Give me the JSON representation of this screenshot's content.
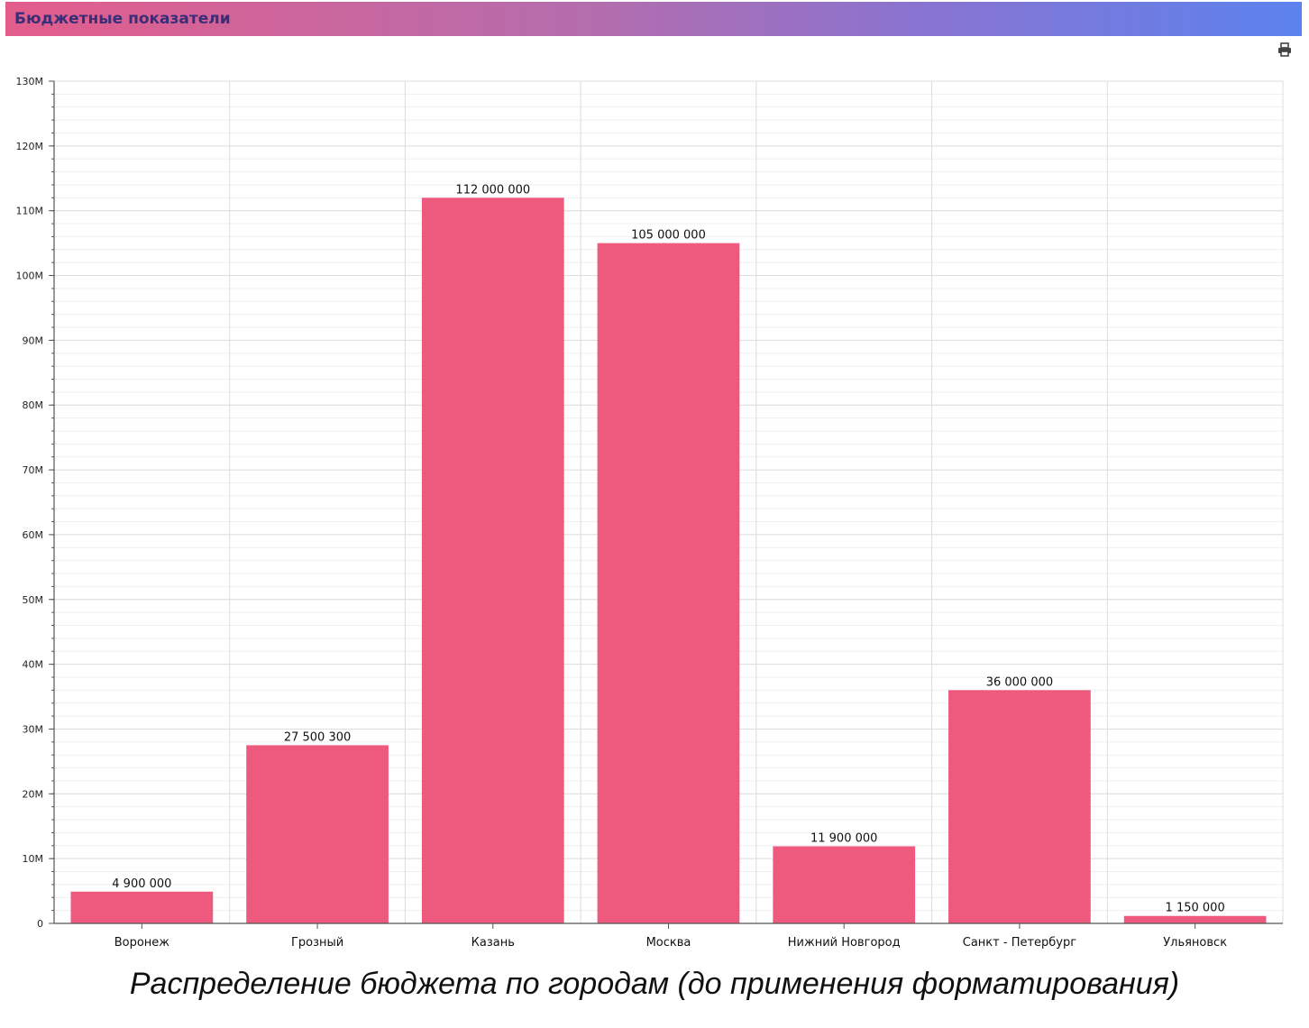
{
  "header": {
    "title": "Бюджетные показатели",
    "accent_start": "#e35d8b",
    "accent_end": "#5c82ee"
  },
  "toolbar": {
    "print_icon": "printer-icon"
  },
  "caption": "Распределение бюджета по городам (до применения форматирования)",
  "chart_data": {
    "type": "bar",
    "categories": [
      "Воронеж",
      "Грозный",
      "Казань",
      "Москва",
      "Нижний Новгород",
      "Санкт - Петербург",
      "Ульяновск"
    ],
    "values": [
      4900000,
      27500300,
      112000000,
      105000000,
      11900000,
      36000000,
      1150000
    ],
    "value_labels": [
      "4 900 000",
      "27 500 300",
      "112 000 000",
      "105 000 000",
      "11 900 000",
      "36 000 000",
      "1 150 000"
    ],
    "yticks": [
      0,
      10000000,
      20000000,
      30000000,
      40000000,
      50000000,
      60000000,
      70000000,
      80000000,
      90000000,
      100000000,
      110000000,
      120000000,
      130000000
    ],
    "ytick_labels": [
      "0",
      "10M",
      "20M",
      "30M",
      "40M",
      "50M",
      "60M",
      "70M",
      "80M",
      "90M",
      "100M",
      "110M",
      "120M",
      "130M"
    ],
    "ylim": [
      0,
      130000000
    ],
    "bar_color": "#ee5a7e",
    "grid": true,
    "title": "",
    "xlabel": "",
    "ylabel": ""
  }
}
